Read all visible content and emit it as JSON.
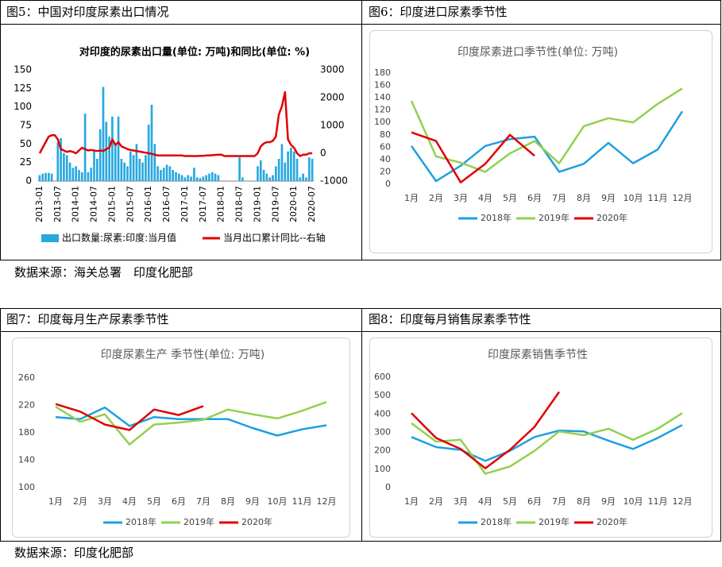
{
  "panels": [
    {
      "header": "图5：中国对印度尿素出口情况"
    },
    {
      "header": "图6：印度进口尿素季节性"
    },
    {
      "header": "图7：印度每月生产尿素季节性"
    },
    {
      "header": "图8：印度每月销售尿素季节性"
    }
  ],
  "sources": [
    "数据来源：海关总署　印度化肥部",
    "数据来源：印度化肥部"
  ],
  "chart_data": [
    {
      "type": "combo",
      "title": "对印度的尿素出口量(单位: 万吨)和同比(单位: %)",
      "categories": [
        "2013-01",
        null,
        null,
        null,
        null,
        null,
        "2013-07",
        null,
        null,
        null,
        null,
        null,
        "2014-01",
        null,
        null,
        null,
        null,
        null,
        "2014-07",
        null,
        null,
        null,
        null,
        null,
        "2015-01",
        null,
        null,
        null,
        null,
        null,
        "2015-07",
        null,
        null,
        null,
        null,
        null,
        "2016-01",
        null,
        null,
        null,
        null,
        null,
        "2016-07",
        null,
        null,
        null,
        null,
        null,
        "2017-01",
        null,
        null,
        null,
        null,
        null,
        "2017-07",
        null,
        null,
        null,
        null,
        null,
        "2018-01",
        null,
        null,
        null,
        null,
        null,
        "2018-07",
        null,
        null,
        null,
        null,
        null,
        "2019-01",
        null,
        null,
        null,
        null,
        null,
        "2019-07",
        null,
        null,
        null,
        null,
        null,
        "2020-01",
        null,
        null,
        null,
        null,
        null,
        "2020-07"
      ],
      "series": [
        {
          "name": "出口数量:尿素:印度:当月值",
          "type": "bar",
          "color": "#29a8e0",
          "values": [
            8,
            10,
            11,
            11,
            10,
            0,
            52,
            58,
            38,
            35,
            25,
            18,
            20,
            15,
            12,
            91,
            12,
            18,
            40,
            30,
            70,
            127,
            80,
            60,
            87,
            50,
            87,
            30,
            25,
            20,
            40,
            35,
            50,
            30,
            25,
            35,
            76,
            103,
            50,
            20,
            15,
            18,
            22,
            20,
            15,
            12,
            10,
            8,
            5,
            8,
            6,
            18,
            5,
            4,
            6,
            8,
            10,
            12,
            10,
            8,
            0,
            0,
            0,
            0,
            0,
            0,
            32,
            5,
            0,
            0,
            0,
            0,
            20,
            28,
            15,
            10,
            5,
            8,
            20,
            30,
            50,
            25,
            40,
            45,
            40,
            30,
            5,
            10,
            5,
            32,
            30
          ]
        },
        {
          "name": "当月出口累计同比--右轴",
          "type": "line",
          "axis": "y2",
          "color": "#e00000",
          "values": [
            0,
            200,
            400,
            600,
            650,
            650,
            500,
            150,
            100,
            50,
            80,
            50,
            0,
            100,
            200,
            150,
            100,
            120,
            100,
            80,
            100,
            80,
            150,
            200,
            500,
            300,
            400,
            250,
            200,
            150,
            120,
            100,
            80,
            60,
            40,
            20,
            0,
            -20,
            -50,
            -80,
            -80,
            -80,
            -80,
            -80,
            -80,
            -80,
            -80,
            -80,
            -100,
            -100,
            -100,
            -100,
            -100,
            -90,
            -90,
            -80,
            -80,
            -70,
            -60,
            -50,
            -50,
            -100,
            -100,
            -100,
            -100,
            -100,
            -100,
            -100,
            -100,
            -100,
            -100,
            -100,
            0,
            250,
            350,
            400,
            400,
            450,
            600,
            1400,
            1700,
            2200,
            500,
            300,
            200,
            0,
            -100,
            -50,
            -50,
            0,
            0
          ]
        }
      ],
      "ylim": [
        0,
        150
      ],
      "yticks": [
        0,
        25,
        50,
        75,
        100,
        125,
        150
      ],
      "y2lim": [
        -1000,
        3000
      ],
      "y2ticks": [
        -1000,
        0,
        1000,
        2000,
        3000
      ],
      "grid": false
    },
    {
      "type": "line",
      "title": "印度尿素进口季节性(单位: 万吨)",
      "categories": [
        "1月",
        "2月",
        "3月",
        "4月",
        "5月",
        "6月",
        "7月",
        "8月",
        "9月",
        "10月",
        "11月",
        "12月"
      ],
      "series": [
        {
          "name": "2018年",
          "color": "#1ea0e0",
          "values": [
            62,
            5,
            30,
            62,
            73,
            77,
            20,
            33,
            67,
            34,
            56,
            118
          ]
        },
        {
          "name": "2019年",
          "color": "#92d050",
          "values": [
            135,
            45,
            35,
            20,
            50,
            70,
            34,
            94,
            107,
            100,
            130,
            155
          ]
        },
        {
          "name": "2020年",
          "color": "#e00000",
          "values": [
            84,
            70,
            3,
            33,
            80,
            46,
            null,
            null,
            null,
            null,
            null,
            null
          ]
        }
      ],
      "ylim": [
        0,
        180
      ],
      "yticks": [
        0,
        20,
        40,
        60,
        80,
        100,
        120,
        140,
        160,
        180
      ],
      "grid": false
    },
    {
      "type": "line",
      "title": "印度尿素生产 季节性(单位: 万吨)",
      "categories": [
        "1月",
        "2月",
        "3月",
        "4月",
        "5月",
        "6月",
        "7月",
        "8月",
        "9月",
        "10月",
        "11月",
        "12月"
      ],
      "series": [
        {
          "name": "2018年",
          "color": "#1ea0e0",
          "values": [
            203,
            200,
            217,
            190,
            203,
            200,
            200,
            200,
            187,
            176,
            185,
            191
          ]
        },
        {
          "name": "2019年",
          "color": "#92d050",
          "values": [
            218,
            196,
            207,
            163,
            192,
            195,
            199,
            214,
            207,
            201,
            212,
            225
          ]
        },
        {
          "name": "2020年",
          "color": "#e00000",
          "values": [
            222,
            211,
            192,
            184,
            214,
            206,
            219,
            null,
            null,
            null,
            null,
            null
          ]
        }
      ],
      "ylim": [
        100,
        260
      ],
      "yticks": [
        100,
        140,
        180,
        220,
        260
      ],
      "grid": false
    },
    {
      "type": "line",
      "title": "印度尿素销售季节性",
      "categories": [
        "1月",
        "2月",
        "3月",
        "4月",
        "5月",
        "6月",
        "7月",
        "8月",
        "9月",
        "10月",
        "11月",
        "12月"
      ],
      "series": [
        {
          "name": "2018年",
          "color": "#1ea0e0",
          "values": [
            275,
            220,
            205,
            145,
            200,
            275,
            310,
            305,
            255,
            210,
            270,
            340
          ]
        },
        {
          "name": "2019年",
          "color": "#92d050",
          "values": [
            350,
            250,
            260,
            75,
            115,
            200,
            305,
            285,
            320,
            260,
            320,
            405
          ]
        },
        {
          "name": "2020年",
          "color": "#e00000",
          "values": [
            405,
            270,
            210,
            105,
            205,
            330,
            520,
            null,
            null,
            null,
            null,
            null
          ]
        }
      ],
      "ylim": [
        0,
        600
      ],
      "yticks": [
        0,
        100,
        200,
        300,
        400,
        500,
        600
      ],
      "grid": false
    }
  ]
}
